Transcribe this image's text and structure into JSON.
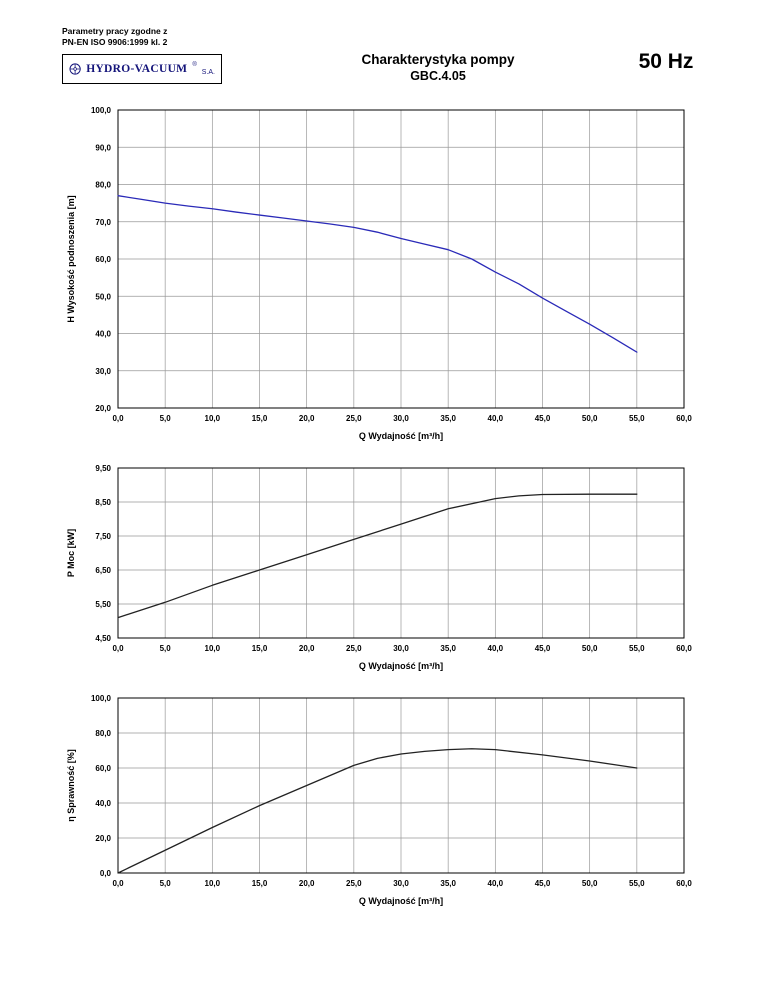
{
  "header": {
    "standard_line1": "Parametry pracy zgodne z",
    "standard_line2": "PN-EN ISO 9906:1999 kl. 2",
    "logo": {
      "name": "HYDRO-VACUUM",
      "registered": "®",
      "suffix": "S.A."
    },
    "title_line1": "Charakterystyka pompy",
    "title_line2": "GBC.4.05",
    "frequency": "50 Hz"
  },
  "chart_data": [
    {
      "type": "line",
      "name": "head-curve",
      "title": "",
      "xlabel": "Q Wydajność [m³/h]",
      "ylabel": "H  Wysokość podnoszenia [m]",
      "xlim": [
        0,
        60
      ],
      "ylim": [
        20,
        100
      ],
      "xtick_step": 5,
      "ytick_step": 10,
      "x_decimals": 1,
      "y_decimals": 1,
      "grid": true,
      "legend": "none",
      "line_color": "#2a2ab8",
      "x": [
        0,
        2.5,
        5,
        7.5,
        10,
        12.5,
        15,
        17.5,
        20,
        22.5,
        25,
        27.5,
        30,
        32.5,
        35,
        37.5,
        40,
        42.5,
        45,
        47.5,
        50,
        52.5,
        55
      ],
      "y": [
        77,
        76,
        75,
        74.2,
        73.5,
        72.6,
        71.8,
        71,
        70.2,
        69.4,
        68.5,
        67.2,
        65.5,
        64,
        62.5,
        60,
        56.5,
        53.3,
        49.5,
        46,
        42.5,
        38.8,
        35
      ]
    },
    {
      "type": "line",
      "name": "power-curve",
      "title": "",
      "xlabel": "Q Wydajność [m³/h]",
      "ylabel": "P  Moc [kW]",
      "xlim": [
        0,
        60
      ],
      "ylim": [
        4.5,
        9.5
      ],
      "xtick_step": 5,
      "ytick_step": 1,
      "x_decimals": 1,
      "y_decimals": 2,
      "grid": true,
      "legend": "none",
      "line_color": "#222222",
      "x": [
        0,
        5,
        10,
        15,
        20,
        25,
        30,
        35,
        40,
        42.5,
        45,
        50,
        55
      ],
      "y": [
        5.1,
        5.55,
        6.05,
        6.5,
        6.95,
        7.4,
        7.85,
        8.3,
        8.6,
        8.68,
        8.72,
        8.73,
        8.73
      ]
    },
    {
      "type": "line",
      "name": "efficiency-curve",
      "title": "",
      "xlabel": "Q Wydajność [m³/h]",
      "ylabel": "η Sprawność [%]",
      "xlim": [
        0,
        60
      ],
      "ylim": [
        0,
        100
      ],
      "xtick_step": 5,
      "ytick_step": 20,
      "x_decimals": 1,
      "y_decimals": 1,
      "grid": true,
      "legend": "none",
      "line_color": "#222222",
      "x": [
        0,
        5,
        10,
        15,
        20,
        25,
        27.5,
        30,
        32.5,
        35,
        37.5,
        40,
        45,
        50,
        55
      ],
      "y": [
        0,
        13,
        26,
        38.5,
        50,
        61.5,
        65.5,
        68,
        69.5,
        70.5,
        71,
        70.5,
        67.5,
        64,
        60
      ]
    }
  ]
}
